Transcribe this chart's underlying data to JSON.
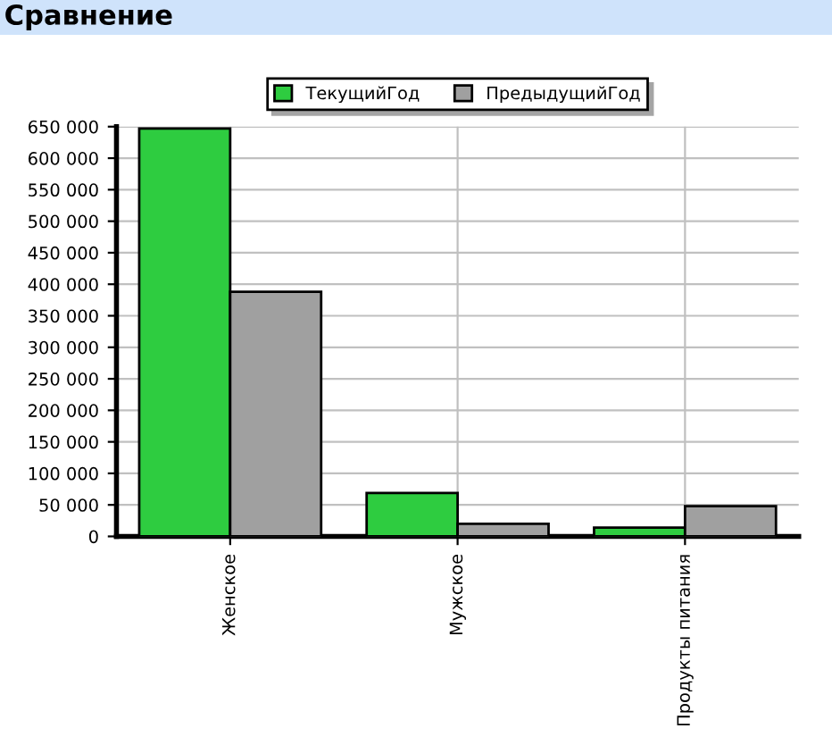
{
  "chart_data": {
    "type": "bar",
    "title": "Сравнение",
    "categories": [
      "Женское",
      "Мужское",
      "Продукты питания"
    ],
    "series": [
      {
        "name": "ТекущийГод",
        "color": "#2ecc40",
        "values": [
          647000,
          69000,
          14000
        ]
      },
      {
        "name": "ПредыдущийГод",
        "color": "#a0a0a0",
        "values": [
          388000,
          20000,
          48000
        ]
      }
    ],
    "ylim": [
      0,
      650000
    ],
    "yticks": [
      {
        "value": 0,
        "label": "0"
      },
      {
        "value": 50000,
        "label": "50 000"
      },
      {
        "value": 100000,
        "label": "100 000"
      },
      {
        "value": 150000,
        "label": "150 000"
      },
      {
        "value": 200000,
        "label": "200 000"
      },
      {
        "value": 250000,
        "label": "250 000"
      },
      {
        "value": 300000,
        "label": "300 000"
      },
      {
        "value": 350000,
        "label": "350 000"
      },
      {
        "value": 400000,
        "label": "400 000"
      },
      {
        "value": 450000,
        "label": "450 000"
      },
      {
        "value": 500000,
        "label": "500 000"
      },
      {
        "value": 550000,
        "label": "550 000"
      },
      {
        "value": 600000,
        "label": "600 000"
      },
      {
        "value": 650000,
        "label": "650 000"
      }
    ],
    "grid": true,
    "legend": "top"
  }
}
